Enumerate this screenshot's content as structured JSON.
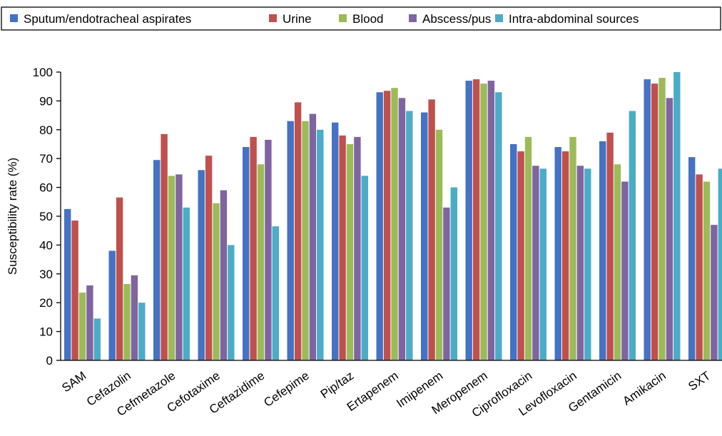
{
  "chart_data": {
    "type": "bar",
    "title": "",
    "xlabel": "",
    "ylabel": "Susceptibility rate (%)",
    "ylim": [
      0,
      100
    ],
    "yticks": [
      0,
      10,
      20,
      30,
      40,
      50,
      60,
      70,
      80,
      90,
      100
    ],
    "grid": false,
    "legend_position": "top",
    "categories": [
      "SAM",
      "Cefazolin",
      "Cefmetazole",
      "Cefotaxime",
      "Ceftazidime",
      "Cefepime",
      "Pip/taz",
      "Ertapenem",
      "Imipenem",
      "Meropenem",
      "Ciprofloxacin",
      "Levofloxacin",
      "Gentamicin",
      "Amikacin",
      "SXT"
    ],
    "series": [
      {
        "name": "Sputum/endotracheal aspirates",
        "color": "#4472C4",
        "values": [
          52.5,
          38,
          69.5,
          66,
          74,
          83,
          82.5,
          93,
          86,
          97,
          75,
          74,
          76,
          97.5,
          70.5
        ]
      },
      {
        "name": "Urine",
        "color": "#C0504D",
        "values": [
          48.5,
          56.5,
          78.5,
          71,
          77.5,
          89.5,
          78,
          93.5,
          90.5,
          97.5,
          72.5,
          72.5,
          79,
          96,
          64.5
        ]
      },
      {
        "name": "Blood",
        "color": "#9BBB59",
        "values": [
          23.5,
          26.5,
          64,
          54.5,
          68,
          83,
          75,
          94.5,
          80,
          96,
          77.5,
          77.5,
          68,
          98,
          62
        ]
      },
      {
        "name": "Abscess/pus",
        "color": "#8064A2",
        "values": [
          26,
          29.5,
          64.5,
          59,
          76.5,
          85.5,
          77.5,
          91,
          53,
          97,
          67.5,
          67.5,
          62,
          91,
          47
        ]
      },
      {
        "name": "Intra-abdominal sources",
        "color": "#4BACC6",
        "values": [
          14.5,
          20,
          53,
          40,
          46.5,
          80,
          64,
          86.5,
          60,
          93,
          66.5,
          66.5,
          86.5,
          100,
          66.5
        ]
      }
    ]
  }
}
